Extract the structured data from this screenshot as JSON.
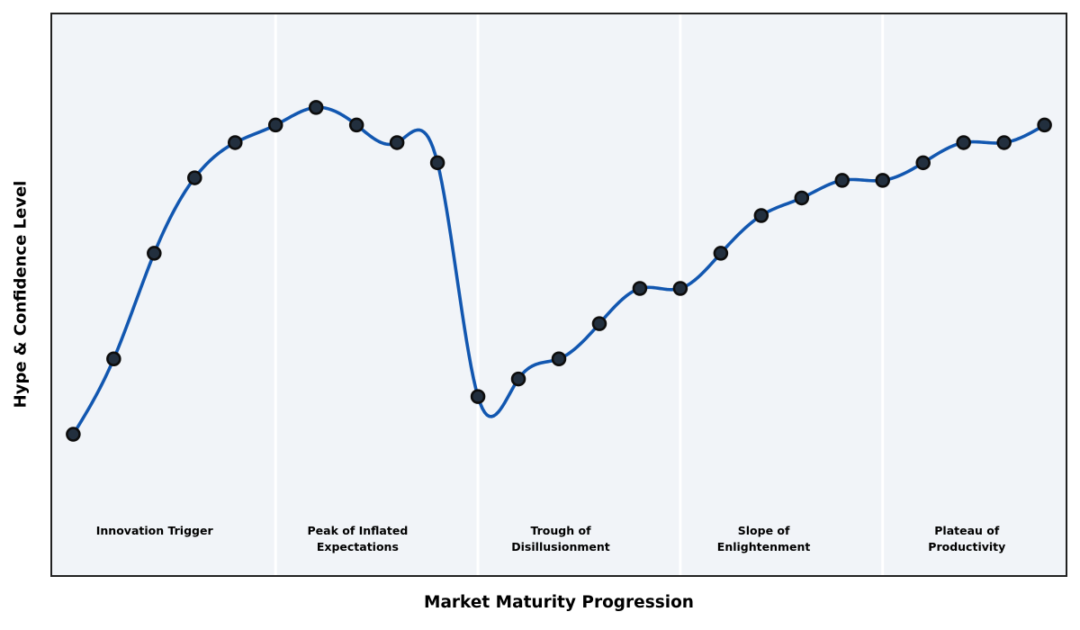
{
  "chart_data": {
    "type": "line",
    "title": "",
    "xlabel": "Market Maturity Progression",
    "ylabel": "Hype & Confidence Level",
    "curve": "smooth-cubic-spline",
    "show_markers": true,
    "grid": false,
    "legend": "none",
    "x": [
      0,
      1,
      2,
      3,
      4,
      5,
      6,
      7,
      8,
      9,
      10,
      11,
      12,
      13,
      14,
      15,
      16,
      17,
      18,
      19,
      20,
      21,
      22,
      23,
      24
    ],
    "series": [
      {
        "name": "Hype & Confidence Level",
        "values": [
          10,
          25,
          46,
          61,
          68,
          71.5,
          75,
          71.5,
          68,
          64,
          17.5,
          21,
          25,
          32,
          39,
          39,
          46,
          53.5,
          57,
          60.5,
          60.5,
          64,
          68,
          68,
          71.5
        ]
      }
    ],
    "xlim": [
      -0.52,
      24.52
    ],
    "ylim": [
      -18,
      93.5
    ],
    "phase_boundaries_x": [
      5,
      10,
      15,
      20
    ],
    "phases": [
      {
        "id": "innovation-trigger",
        "lines": [
          "Innovation Trigger"
        ],
        "center_x": 2
      },
      {
        "id": "peak-of-inflated-expectations",
        "lines": [
          "Peak of Inflated",
          "Expectations"
        ],
        "center_x": 7
      },
      {
        "id": "trough-of-disillusionment",
        "lines": [
          "Trough of",
          "Disillusionment"
        ],
        "center_x": 12
      },
      {
        "id": "slope-of-enlightenment",
        "lines": [
          "Slope of",
          "Enlightenment"
        ],
        "center_x": 17
      },
      {
        "id": "plateau-of-productivity",
        "lines": [
          "Plateau of",
          "Productivity"
        ],
        "center_x": 22
      }
    ],
    "colors": {
      "line": "#1257b0",
      "marker_fill": "#222f3e",
      "marker_edge": "#0d0d0d",
      "plot_bg": "#f1f4f8",
      "figure_bg": "#ffffff",
      "spine": "#212121",
      "divider": "#ffffff",
      "text": "#000000"
    }
  }
}
